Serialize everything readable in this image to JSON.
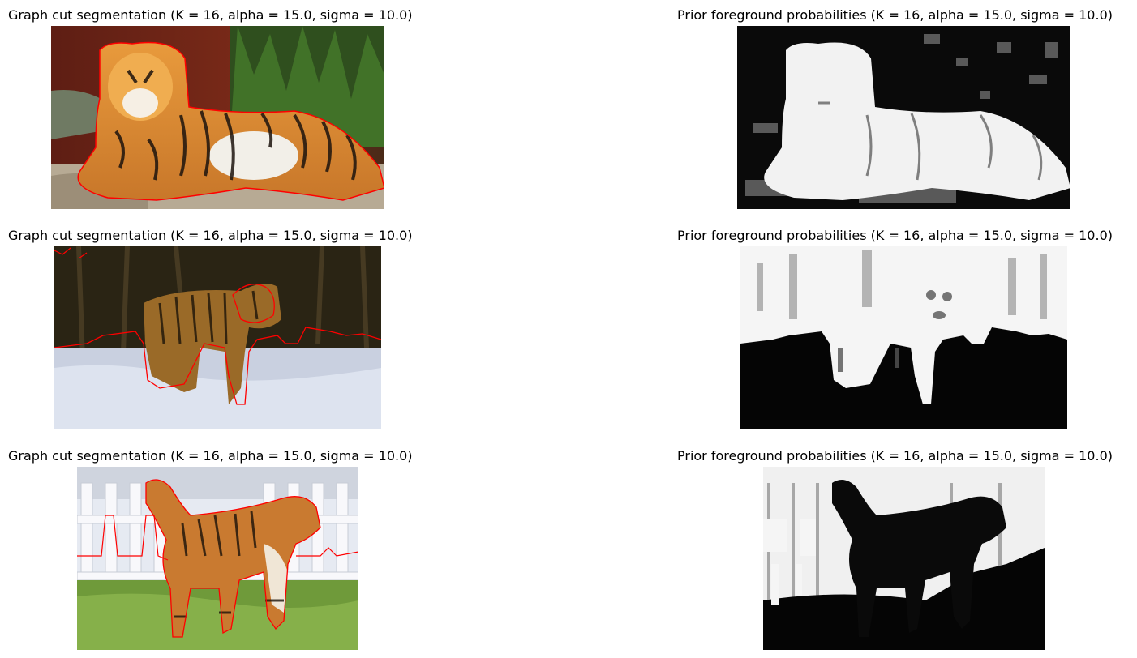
{
  "figure": {
    "panels": [
      {
        "title": "Graph cut segmentation (K = 16, alpha = 15.0, sigma = 10.0)",
        "subject": "tiger lying on a rock in front of a red wall and bamboo, outlined with a red segmentation contour"
      },
      {
        "title": "Prior foreground probabilities (K = 16, alpha = 15.0, sigma = 10.0)",
        "subject": "grayscale probability map, bright lying tiger on dark background"
      },
      {
        "title": "Graph cut segmentation (K = 16, alpha = 15.0, sigma = 10.0)",
        "subject": "tiger walking in snow in front of a dark forest, outlined with a red segmentation contour"
      },
      {
        "title": "Prior foreground probabilities (K = 16, alpha = 15.0, sigma = 10.0)",
        "subject": "grayscale probability map, bright forest and tiger above dark snow"
      },
      {
        "title": "Graph cut segmentation (K = 16, alpha = 15.0, sigma = 10.0)",
        "subject": "dog painted with tiger stripes standing on grass in front of a white picket fence, outlined with a red segmentation contour"
      },
      {
        "title": "Prior foreground probabilities (K = 16, alpha = 15.0, sigma = 10.0)",
        "subject": "grayscale probability map, white fence and dark dog silhouette"
      }
    ]
  },
  "colors": {
    "contour": "#ff0000",
    "background": "#ffffff"
  }
}
